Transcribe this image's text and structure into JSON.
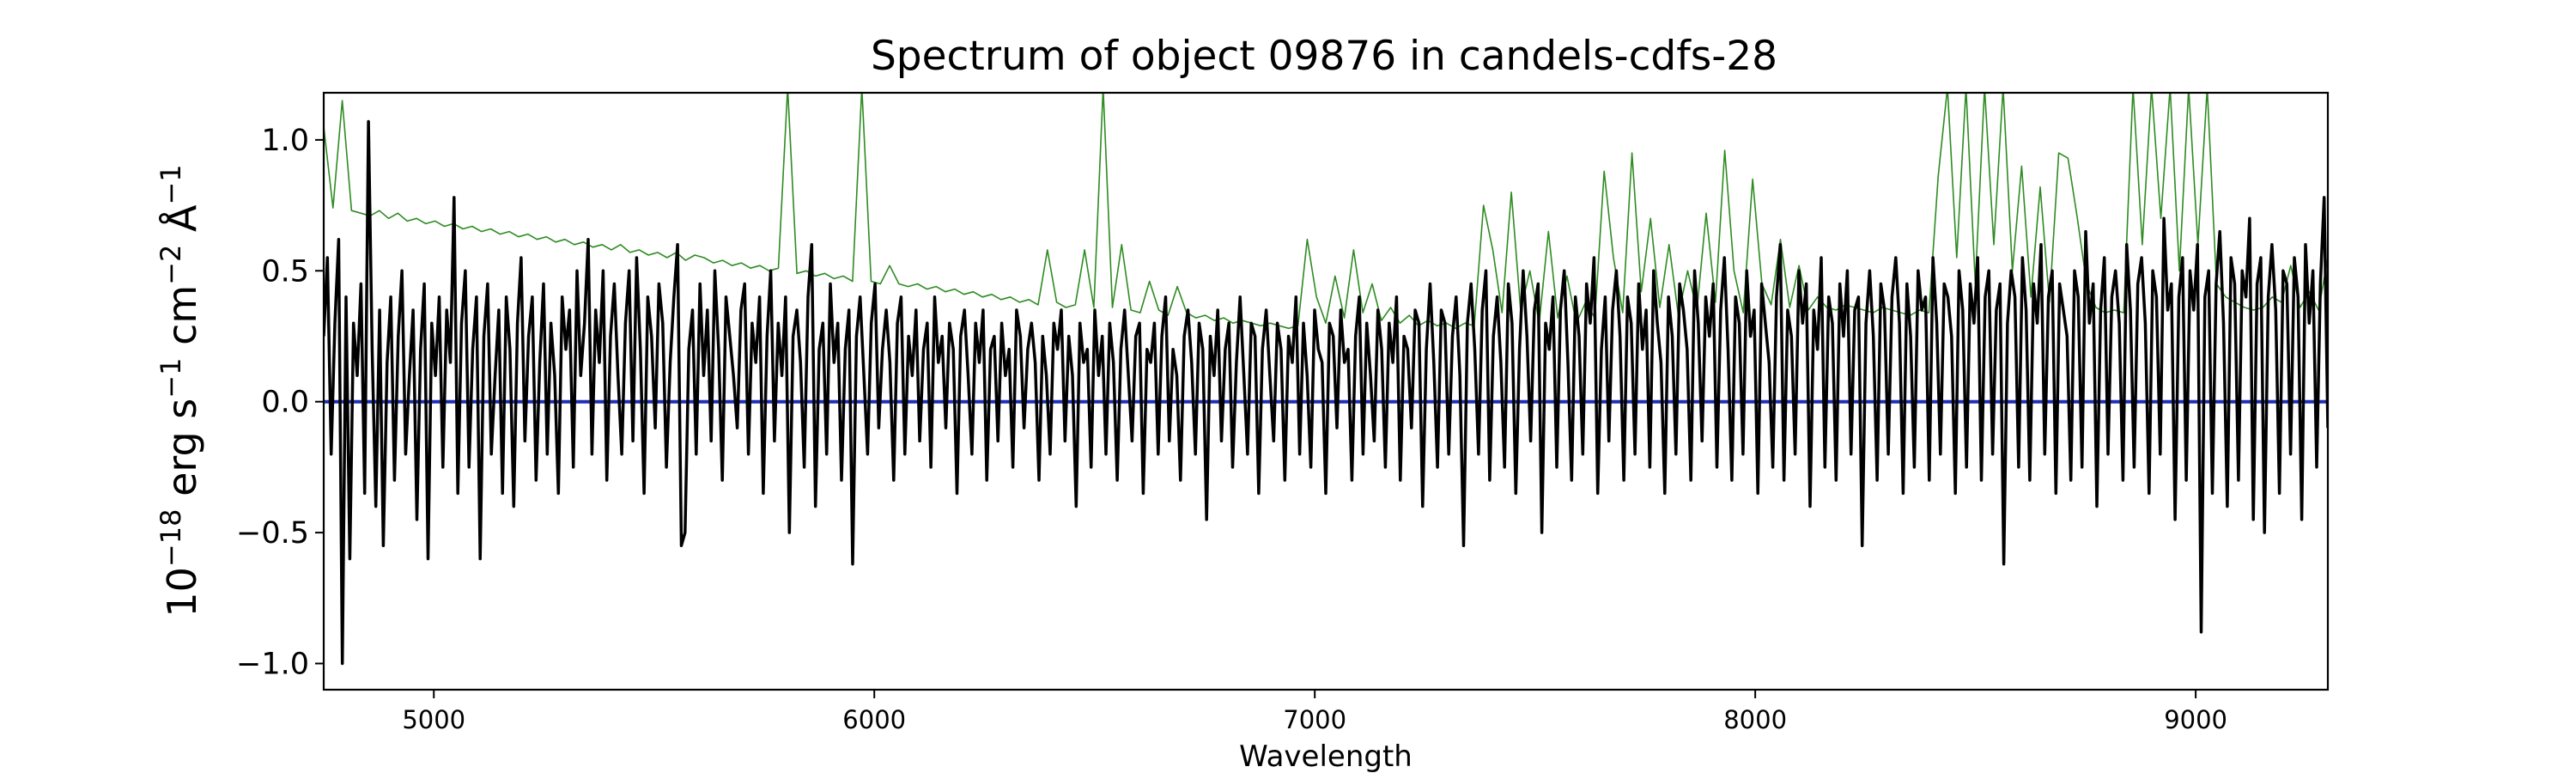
{
  "chart_data": {
    "type": "line",
    "title": "Spectrum of object 09876 in candels-cdfs-28",
    "xlabel": "Wavelength",
    "ylabel": {
      "base": "10",
      "exp1": "−18",
      "erg": " erg s",
      "exp2": "−1",
      "cm": " cm",
      "exp3": "−2",
      "ang": " Å",
      "exp4": "−1"
    },
    "xlim": [
      4750,
      9300
    ],
    "ylim": [
      -1.1,
      1.18
    ],
    "x_ticks": [
      5000,
      6000,
      7000,
      8000,
      9000
    ],
    "x_tick_labels": [
      "5000",
      "6000",
      "7000",
      "8000",
      "9000"
    ],
    "y_ticks": [
      -1.0,
      -0.5,
      0.0,
      0.5,
      1.0
    ],
    "y_tick_labels": [
      "−1.0",
      "−0.5",
      "0.0",
      "0.5",
      "1.0"
    ],
    "grid": false,
    "legend": "none",
    "series": [
      {
        "role": "flux",
        "color": "#000000",
        "line_width": 3.5,
        "x_start": 4750,
        "x_end": 9300,
        "values": [
          0.25,
          0.55,
          -0.2,
          0.3,
          0.62,
          -1.0,
          0.4,
          -0.6,
          0.3,
          0.1,
          0.45,
          -0.35,
          1.07,
          0.2,
          -0.4,
          0.35,
          -0.55,
          0.15,
          0.4,
          -0.3,
          0.25,
          0.5,
          -0.2,
          0.1,
          0.35,
          -0.45,
          0.2,
          0.45,
          -0.6,
          0.3,
          0.1,
          0.4,
          -0.25,
          0.35,
          0.15,
          0.78,
          -0.35,
          0.3,
          0.5,
          -0.25,
          0.2,
          0.4,
          -0.6,
          0.25,
          0.45,
          -0.2,
          0.1,
          0.35,
          -0.35,
          0.4,
          0.2,
          -0.4,
          0.3,
          0.55,
          -0.15,
          0.25,
          0.4,
          -0.3,
          0.15,
          0.45,
          -0.2,
          0.3,
          0.1,
          -0.35,
          0.4,
          0.2,
          0.35,
          -0.25,
          0.5,
          0.1,
          0.3,
          0.62,
          -0.2,
          0.35,
          0.15,
          0.5,
          -0.3,
          0.25,
          0.45,
          0.1,
          -0.2,
          0.3,
          0.5,
          -0.15,
          0.55,
          0.2,
          -0.35,
          0.4,
          0.25,
          -0.1,
          0.45,
          0.3,
          -0.25,
          0.15,
          0.4,
          0.6,
          -0.55,
          -0.5,
          0.2,
          0.35,
          -0.2,
          0.45,
          0.1,
          0.35,
          -0.15,
          0.5,
          0.2,
          -0.3,
          0.4,
          0.25,
          0.1,
          -0.1,
          0.35,
          0.45,
          -0.2,
          0.3,
          0.15,
          0.4,
          -0.35,
          0.25,
          0.5,
          -0.15,
          0.3,
          0.1,
          0.4,
          -0.5,
          0.25,
          0.35,
          0.15,
          -0.25,
          0.4,
          0.6,
          -0.4,
          0.2,
          0.3,
          -0.2,
          0.45,
          0.15,
          0.3,
          -0.3,
          0.2,
          0.35,
          -0.62,
          0.25,
          0.4,
          0.1,
          -0.2,
          0.3,
          0.45,
          -0.1,
          0.2,
          0.35,
          0.15,
          -0.3,
          0.3,
          0.4,
          -0.2,
          0.25,
          0.1,
          0.35,
          -0.15,
          0.2,
          0.3,
          -0.25,
          0.4,
          0.15,
          0.25,
          -0.1,
          0.3,
          0.2,
          -0.35,
          0.25,
          0.35,
          0.1,
          -0.2,
          0.3,
          0.15,
          0.35,
          -0.3,
          0.2,
          0.25,
          -0.15,
          0.3,
          0.1,
          0.2,
          -0.25,
          0.35,
          0.25,
          -0.1,
          0.2,
          0.3,
          0.15,
          -0.3,
          0.25,
          0.1,
          -0.2,
          0.3,
          0.2,
          0.35,
          -0.15,
          0.25,
          0.1,
          -0.4,
          0.3,
          0.15,
          0.2,
          -0.25,
          0.35,
          0.1,
          0.25,
          -0.2,
          0.3,
          0.15,
          -0.3,
          0.2,
          0.35,
          0.1,
          -0.15,
          0.25,
          0.3,
          -0.35,
          0.2,
          0.15,
          0.3,
          -0.2,
          0.25,
          0.4,
          -0.15,
          0.2,
          0.1,
          -0.3,
          0.25,
          0.35,
          0.15,
          -0.2,
          0.3,
          0.2,
          -0.45,
          0.25,
          0.1,
          0.35,
          -0.15,
          0.2,
          0.3,
          -0.25,
          0.15,
          0.4,
          0.1,
          -0.2,
          0.3,
          0.25,
          -0.35,
          0.2,
          0.35,
          0.1,
          -0.15,
          0.3,
          0.2,
          -0.3,
          0.25,
          0.15,
          0.4,
          -0.2,
          0.3,
          0.1,
          -0.25,
          0.35,
          0.2,
          0.15,
          -0.35,
          0.3,
          0.25,
          -0.1,
          0.35,
          0.15,
          0.2,
          -0.3,
          0.25,
          0.4,
          -0.2,
          0.3,
          0.1,
          -0.15,
          0.35,
          0.2,
          -0.25,
          0.3,
          0.15,
          0.4,
          -0.3,
          0.25,
          0.2,
          -0.1,
          0.35,
          0.3,
          -0.4,
          0.2,
          0.45,
          0.15,
          -0.25,
          0.35,
          0.3,
          -0.2,
          0.25,
          0.4,
          0.1,
          -0.55,
          0.3,
          0.45,
          0.2,
          -0.2,
          0.35,
          0.5,
          -0.3,
          0.25,
          0.4,
          0.15,
          -0.25,
          0.45,
          0.3,
          -0.35,
          0.2,
          0.5,
          0.25,
          -0.15,
          0.35,
          0.45,
          -0.5,
          0.3,
          0.2,
          0.4,
          -0.25,
          0.35,
          0.5,
          0.15,
          -0.3,
          0.4,
          0.25,
          -0.2,
          0.45,
          0.3,
          0.55,
          -0.35,
          0.2,
          0.4,
          -0.15,
          0.35,
          0.5,
          0.25,
          -0.3,
          0.4,
          0.3,
          -0.2,
          0.45,
          0.2,
          0.35,
          -0.25,
          0.5,
          0.3,
          0.15,
          -0.35,
          0.4,
          0.25,
          -0.2,
          0.45,
          0.35,
          0.2,
          -0.3,
          0.5,
          0.3,
          -0.15,
          0.4,
          0.25,
          0.45,
          -0.25,
          0.35,
          0.55,
          0.2,
          -0.3,
          0.4,
          0.3,
          -0.2,
          0.5,
          0.25,
          0.35,
          -0.35,
          0.45,
          0.3,
          0.15,
          -0.25,
          0.4,
          0.6,
          -0.3,
          0.35,
          0.25,
          -0.2,
          0.5,
          0.3,
          0.45,
          -0.4,
          0.35,
          0.2,
          0.55,
          -0.25,
          0.4,
          0.3,
          -0.3,
          0.45,
          0.25,
          0.5,
          -0.2,
          0.35,
          0.4,
          -0.55,
          0.3,
          0.5,
          0.25,
          -0.3,
          0.45,
          0.35,
          -0.2,
          0.4,
          0.55,
          0.3,
          -0.35,
          0.45,
          0.25,
          -0.25,
          0.5,
          0.35,
          0.4,
          -0.3,
          0.55,
          0.3,
          -0.2,
          0.45,
          0.4,
          0.25,
          -0.35,
          0.5,
          0.35,
          -0.25,
          0.45,
          0.3,
          0.55,
          -0.3,
          0.4,
          0.5,
          -0.2,
          0.35,
          0.45,
          -0.62,
          0.3,
          0.5,
          0.4,
          -0.25,
          0.55,
          0.35,
          -0.3,
          0.45,
          0.3,
          0.6,
          -0.2,
          0.4,
          0.5,
          -0.35,
          0.45,
          0.35,
          0.25,
          -0.3,
          0.5,
          0.4,
          -0.25,
          0.65,
          0.3,
          0.45,
          -0.4,
          0.35,
          0.55,
          -0.2,
          0.4,
          0.5,
          0.3,
          -0.3,
          0.6,
          0.35,
          -0.25,
          0.45,
          0.55,
          0.3,
          -0.35,
          0.5,
          0.4,
          -0.2,
          0.7,
          0.35,
          0.45,
          -0.45,
          0.4,
          0.55,
          -0.3,
          0.5,
          0.35,
          0.6,
          -0.88,
          0.4,
          0.5,
          -0.35,
          0.45,
          0.65,
          0.3,
          -0.4,
          0.55,
          0.45,
          -0.3,
          0.5,
          0.4,
          0.7,
          -0.45,
          0.45,
          0.55,
          -0.5,
          0.4,
          0.6,
          0.35,
          -0.35,
          0.5,
          0.45,
          -0.2,
          0.55,
          0.4,
          -0.45,
          0.6,
          0.3,
          0.5,
          -0.25,
          0.45,
          0.78,
          -0.1
        ]
      },
      {
        "role": "error",
        "color": "#2e8b22",
        "line_width": 1.6,
        "x_start": 4750,
        "x_end": 9300,
        "values": [
          1.05,
          0.74,
          1.15,
          0.73,
          0.72,
          0.71,
          0.73,
          0.7,
          0.72,
          0.69,
          0.7,
          0.68,
          0.69,
          0.67,
          0.68,
          0.66,
          0.67,
          0.65,
          0.66,
          0.64,
          0.65,
          0.63,
          0.64,
          0.62,
          0.63,
          0.61,
          0.62,
          0.6,
          0.61,
          0.59,
          0.6,
          0.58,
          0.6,
          0.57,
          0.58,
          0.56,
          0.57,
          0.55,
          0.57,
          0.54,
          0.56,
          0.55,
          0.53,
          0.54,
          0.52,
          0.53,
          0.51,
          0.52,
          0.5,
          0.51,
          1.2,
          0.49,
          0.5,
          0.48,
          0.49,
          0.47,
          0.48,
          0.46,
          1.2,
          0.46,
          0.45,
          0.52,
          0.45,
          0.44,
          0.45,
          0.43,
          0.44,
          0.42,
          0.43,
          0.41,
          0.42,
          0.4,
          0.41,
          0.39,
          0.4,
          0.38,
          0.39,
          0.37,
          0.58,
          0.38,
          0.36,
          0.37,
          0.58,
          0.36,
          1.2,
          0.36,
          0.6,
          0.35,
          0.34,
          0.46,
          0.35,
          0.33,
          0.44,
          0.34,
          0.32,
          0.33,
          0.31,
          0.32,
          0.3,
          0.31,
          0.3,
          0.29,
          0.3,
          0.29,
          0.28,
          0.29,
          0.62,
          0.4,
          0.3,
          0.48,
          0.32,
          0.58,
          0.34,
          0.45,
          0.31,
          0.36,
          0.3,
          0.33,
          0.29,
          0.31,
          0.29,
          0.3,
          0.28,
          0.3,
          0.29,
          0.75,
          0.58,
          0.34,
          0.8,
          0.35,
          0.5,
          0.3,
          0.65,
          0.32,
          0.48,
          0.3,
          0.38,
          0.32,
          0.88,
          0.55,
          0.34,
          0.95,
          0.42,
          0.7,
          0.36,
          0.6,
          0.33,
          0.5,
          0.35,
          0.72,
          0.38,
          0.96,
          0.5,
          0.34,
          0.85,
          0.45,
          0.37,
          0.62,
          0.36,
          0.52,
          0.35,
          0.4,
          0.36,
          0.35,
          0.37,
          0.36,
          0.35,
          0.34,
          0.36,
          0.35,
          0.34,
          0.33,
          0.35,
          0.34,
          0.86,
          1.2,
          0.55,
          1.2,
          0.45,
          1.2,
          0.6,
          1.2,
          0.5,
          0.9,
          0.4,
          0.82,
          0.38,
          0.95,
          0.93,
          0.7,
          0.45,
          0.36,
          0.34,
          0.35,
          0.34,
          1.2,
          0.6,
          1.2,
          0.7,
          1.2,
          0.5,
          1.2,
          0.6,
          1.2,
          0.45,
          0.4,
          0.38,
          0.36,
          0.35,
          0.36,
          0.4,
          0.38,
          0.52,
          0.36,
          0.42,
          0.35,
          0.55
        ]
      },
      {
        "role": "zero",
        "color": "#1f2fb5",
        "line_width": 4,
        "x": [
          4750,
          9300
        ],
        "values": [
          0.0,
          0.0
        ]
      }
    ]
  }
}
